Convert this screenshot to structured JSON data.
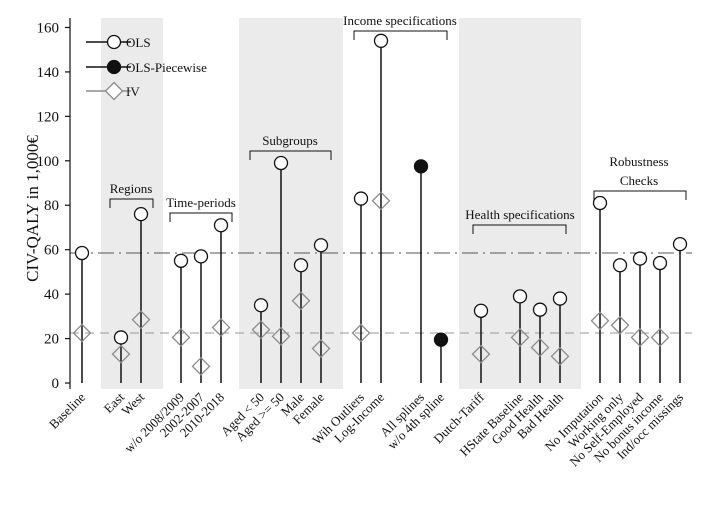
{
  "chart_data": {
    "type": "scatter",
    "title": "",
    "xlabel": "",
    "ylabel": "CIV-QALY in 1,000€",
    "ylim": [
      0,
      165
    ],
    "yticks": [
      0,
      20,
      40,
      60,
      80,
      100,
      120,
      140,
      160
    ],
    "reference_lines": [
      {
        "name": "OLS baseline",
        "value": 58.5,
        "style": "long-dash",
        "color": "#555555"
      },
      {
        "name": "IV baseline",
        "value": 22.5,
        "style": "dash",
        "color": "#9a9a9a"
      }
    ],
    "legend": {
      "position": "top-left",
      "entries": [
        {
          "name": "OLS",
          "marker": "hollow-circle"
        },
        {
          "name": "OLS-Piecewise",
          "marker": "filled-circle"
        },
        {
          "name": "IV",
          "marker": "hollow-diamond"
        }
      ]
    },
    "categories": [
      "Baseline",
      "East",
      "West",
      "w/o 2008/2009",
      "2002-2007",
      "2010-2018",
      "Aged < 50",
      "Aged >= 50",
      "Male",
      "Female",
      "Wih Outliers",
      "Log-Income",
      "All splines",
      "w/o 4th spline",
      "Dutch-Tariff",
      "HState Baseline",
      "Good Health",
      "Bad Health",
      "No Imputation",
      "Working only",
      "No Self-Employed",
      "No bonus income",
      "Ind/occ missings"
    ],
    "series": [
      {
        "name": "OLS",
        "marker": "hollow-circle",
        "values": [
          58.5,
          20.5,
          76,
          55,
          57,
          71,
          35,
          99,
          53,
          62,
          83,
          154,
          null,
          null,
          32.5,
          39,
          33,
          38,
          81,
          53,
          56,
          54,
          62.5
        ]
      },
      {
        "name": "OLS-Piecewise",
        "marker": "filled-circle",
        "values": [
          null,
          null,
          null,
          null,
          null,
          null,
          null,
          null,
          null,
          null,
          null,
          null,
          97.5,
          19.5,
          null,
          null,
          null,
          null,
          null,
          null,
          null,
          null,
          null
        ]
      },
      {
        "name": "IV",
        "marker": "hollow-diamond",
        "values": [
          22.5,
          13,
          28.5,
          20.5,
          7.5,
          25,
          24,
          21,
          37,
          15.5,
          22.5,
          82,
          null,
          null,
          13,
          20.5,
          16,
          12,
          28,
          26,
          20.5,
          20.5,
          null
        ]
      }
    ],
    "groups": [
      {
        "label": [
          "Regions"
        ],
        "shaded": true
      },
      {
        "label": [
          "Time-periods"
        ],
        "shaded": false
      },
      {
        "label": [
          "Subgroups"
        ],
        "shaded": true
      },
      {
        "label": [
          "Income specifications"
        ],
        "shaded": false
      },
      {
        "label": [
          "Health specifications"
        ],
        "shaded": true
      },
      {
        "label": [
          "Robustness",
          "Checks"
        ],
        "shaded": false
      }
    ]
  },
  "colors": {
    "ols": "#111111",
    "iv": "#8c8c8c",
    "band": "#ebebeb",
    "axis": "#111111"
  }
}
